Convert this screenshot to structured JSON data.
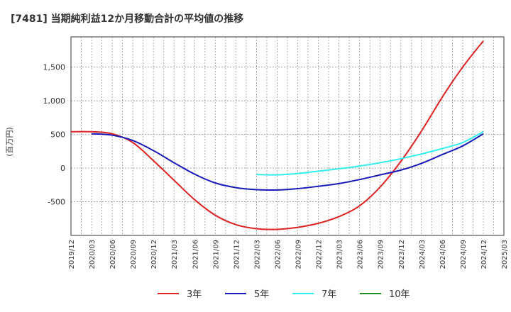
{
  "chart_data": {
    "type": "line",
    "title": "[7481]  当期純利益12か月移動合計の平均値の推移",
    "ylabel": "(百万円)",
    "xlabel": "",
    "ylim": [
      -1000,
      1950
    ],
    "y_ticks": [
      1500,
      1000,
      500,
      0,
      -500
    ],
    "y_tick_labels": [
      "1,500",
      "1,000",
      "500",
      "0",
      "-500"
    ],
    "x_tick_labels": [
      "2019/12",
      "2020/03",
      "2020/06",
      "2020/09",
      "2020/12",
      "2021/03",
      "2021/06",
      "2021/09",
      "2021/12",
      "2022/03",
      "2022/06",
      "2022/09",
      "2022/12",
      "2023/03",
      "2023/06",
      "2023/09",
      "2023/12",
      "2024/03",
      "2024/06",
      "2024/09",
      "2024/12",
      "2025/03"
    ],
    "grid": true,
    "legend_position": "bottom",
    "series": [
      {
        "name": "3年",
        "color": "#dd2222",
        "start_index": 0,
        "values": [
          540,
          540,
          510,
          380,
          110,
          -180,
          -470,
          -700,
          -840,
          -900,
          -910,
          -880,
          -820,
          -720,
          -560,
          -280,
          100,
          550,
          1050,
          1500,
          1890
        ]
      },
      {
        "name": "5年",
        "color": "#1a1ab8",
        "start_index": 1,
        "values": [
          510,
          490,
          410,
          260,
          80,
          -90,
          -220,
          -290,
          -320,
          -325,
          -305,
          -270,
          -230,
          -170,
          -100,
          -30,
          70,
          200,
          330,
          510
        ]
      },
      {
        "name": "7年",
        "color": "#33eeee",
        "start_index": 9,
        "values": [
          -95,
          -100,
          -80,
          -45,
          -10,
          30,
          80,
          140,
          210,
          290,
          380,
          540
        ]
      },
      {
        "name": "10年",
        "color": "#228b22",
        "start_index": 0,
        "values": []
      }
    ]
  }
}
